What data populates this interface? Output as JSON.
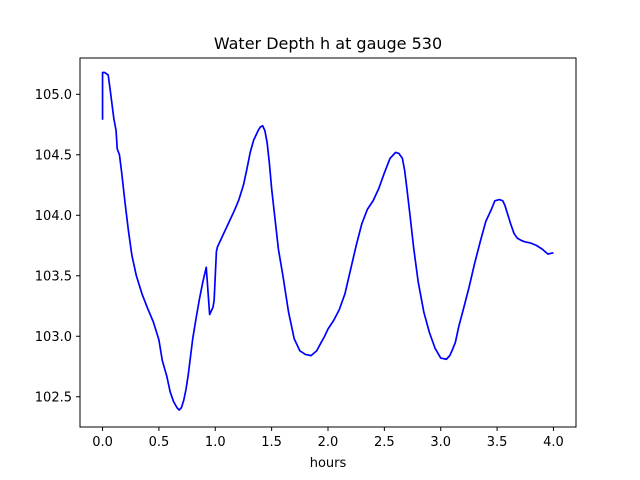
{
  "chart_data": {
    "type": "line",
    "title": "Water Depth h at gauge 530",
    "xlabel": "hours",
    "ylabel": "",
    "xlim": [
      -0.2,
      4.2
    ],
    "ylim": [
      102.25,
      105.3
    ],
    "xticks": [
      0.0,
      0.5,
      1.0,
      1.5,
      2.0,
      2.5,
      3.0,
      3.5,
      4.0
    ],
    "xtick_labels": [
      "0.0",
      "0.5",
      "1.0",
      "1.5",
      "2.0",
      "2.5",
      "3.0",
      "3.5",
      "4.0"
    ],
    "yticks": [
      102.5,
      103.0,
      103.5,
      104.0,
      104.5,
      105.0
    ],
    "ytick_labels": [
      "102.5",
      "103.0",
      "103.5",
      "104.0",
      "104.5",
      "105.0"
    ],
    "grid": false,
    "line_color": "#0000ff",
    "series": [
      {
        "x": [
          0.0,
          0.0,
          0.02,
          0.05,
          0.07,
          0.1,
          0.12,
          0.13,
          0.15,
          0.17,
          0.2,
          0.23,
          0.26,
          0.3,
          0.35,
          0.4,
          0.45,
          0.5,
          0.53,
          0.57,
          0.6,
          0.63,
          0.66,
          0.68,
          0.7,
          0.72,
          0.74,
          0.76,
          0.78,
          0.8,
          0.83,
          0.86,
          0.89,
          0.92,
          0.95,
          0.98,
          0.99,
          1.01,
          1.02,
          1.03,
          1.05,
          1.07,
          1.1,
          1.13,
          1.17,
          1.21,
          1.25,
          1.28,
          1.31,
          1.34,
          1.38,
          1.4,
          1.42,
          1.44,
          1.46,
          1.48,
          1.5,
          1.53,
          1.56,
          1.6,
          1.65,
          1.7,
          1.75,
          1.8,
          1.85,
          1.9,
          1.94,
          1.97,
          2.0,
          2.05,
          2.1,
          2.15,
          2.2,
          2.25,
          2.3,
          2.35,
          2.4,
          2.45,
          2.5,
          2.55,
          2.6,
          2.63,
          2.66,
          2.68,
          2.7,
          2.73,
          2.76,
          2.8,
          2.85,
          2.9,
          2.95,
          3.0,
          3.05,
          3.08,
          3.1,
          3.13,
          3.16,
          3.2,
          3.25,
          3.3,
          3.35,
          3.4,
          3.45,
          3.48,
          3.52,
          3.55,
          3.57,
          3.59,
          3.62,
          3.65,
          3.68,
          3.72,
          3.75,
          3.8,
          3.85,
          3.9,
          3.95,
          4.0
        ],
        "y": [
          104.79,
          105.18,
          105.18,
          105.16,
          105.02,
          104.8,
          104.7,
          104.55,
          104.5,
          104.35,
          104.1,
          103.87,
          103.67,
          103.5,
          103.35,
          103.23,
          103.12,
          102.97,
          102.8,
          102.67,
          102.54,
          102.46,
          102.41,
          102.39,
          102.41,
          102.47,
          102.56,
          102.68,
          102.83,
          102.98,
          103.15,
          103.31,
          103.45,
          103.57,
          103.18,
          103.24,
          103.3,
          103.7,
          103.74,
          103.76,
          103.8,
          103.84,
          103.9,
          103.96,
          104.04,
          104.13,
          104.25,
          104.38,
          104.52,
          104.62,
          104.7,
          104.73,
          104.74,
          104.7,
          104.6,
          104.43,
          104.22,
          103.97,
          103.72,
          103.5,
          103.2,
          102.98,
          102.88,
          102.85,
          102.84,
          102.88,
          102.95,
          103.0,
          103.06,
          103.13,
          103.22,
          103.35,
          103.55,
          103.75,
          103.93,
          104.05,
          104.12,
          104.22,
          104.35,
          104.47,
          104.52,
          104.51,
          104.47,
          104.37,
          104.22,
          103.98,
          103.73,
          103.45,
          103.2,
          103.03,
          102.9,
          102.82,
          102.81,
          102.84,
          102.88,
          102.95,
          103.08,
          103.22,
          103.4,
          103.6,
          103.78,
          103.95,
          104.05,
          104.12,
          104.13,
          104.12,
          104.08,
          104.02,
          103.93,
          103.85,
          103.81,
          103.79,
          103.78,
          103.77,
          103.75,
          103.72,
          103.68,
          103.69
        ]
      }
    ]
  }
}
